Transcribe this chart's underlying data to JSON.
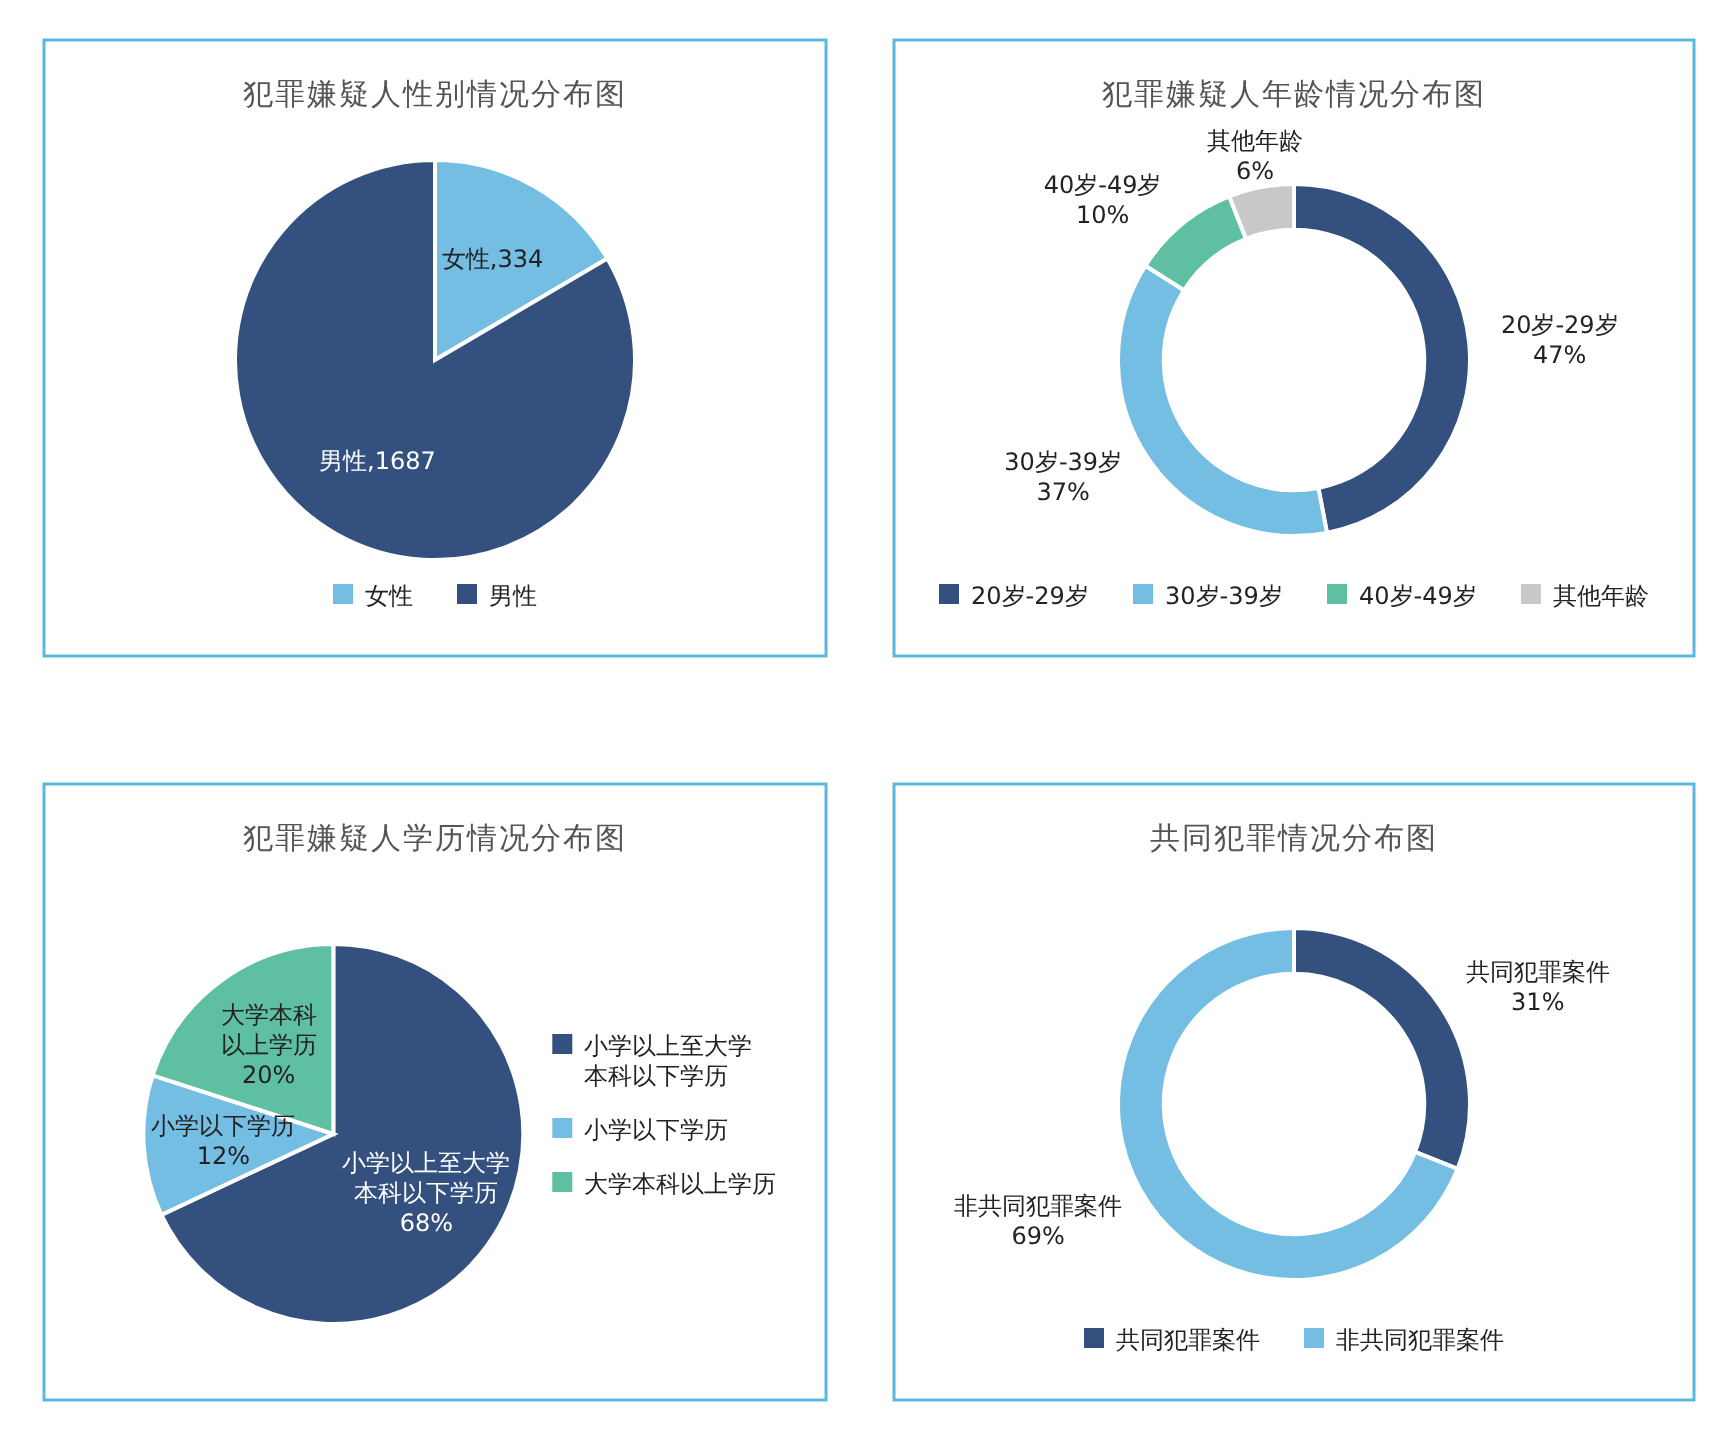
{
  "chart_data": [
    {
      "type": "pie",
      "title": "犯罪嫌疑人性别情况分布图",
      "categories": [
        "女性",
        "男性"
      ],
      "values": [
        334,
        1687
      ],
      "colors": [
        "#74bde3",
        "#34507e"
      ],
      "value_labels": [
        "女性,334",
        "男性,1687"
      ],
      "legend": "bottom"
    },
    {
      "type": "donut",
      "title": "犯罪嫌疑人年龄情况分布图",
      "categories": [
        "20岁-29岁",
        "30岁-39岁",
        "40岁-49岁",
        "其他年龄"
      ],
      "values": [
        47,
        37,
        10,
        6
      ],
      "colors": [
        "#34507e",
        "#74bde3",
        "#5fbfa3",
        "#c8c8c8"
      ],
      "value_labels": [
        "20岁-29岁\n47%",
        "30岁-39岁\n37%",
        "40岁-49岁\n10%",
        "其他年龄\n6%"
      ],
      "legend": "bottom"
    },
    {
      "type": "pie",
      "title": "犯罪嫌疑人学历情况分布图",
      "categories": [
        "小学以上至大学本科以下学历",
        "小学以下学历",
        "大学本科以上学历"
      ],
      "values": [
        68,
        12,
        20
      ],
      "colors": [
        "#34507e",
        "#74bde3",
        "#5fbfa3"
      ],
      "value_labels": [
        "小学以上至大学本科以下学历\n68%",
        "小学以下学历\n12%",
        "大学本科以上学历\n20%"
      ],
      "legend": "right"
    },
    {
      "type": "donut",
      "title": "共同犯罪情况分布图",
      "categories": [
        "共同犯罪案件",
        "非共同犯罪案件"
      ],
      "values": [
        31,
        69
      ],
      "colors": [
        "#34507e",
        "#74bde3"
      ],
      "value_labels": [
        "共同犯罪案件\n31%",
        "非共同犯罪案件\n69%"
      ],
      "legend": "bottom"
    }
  ]
}
